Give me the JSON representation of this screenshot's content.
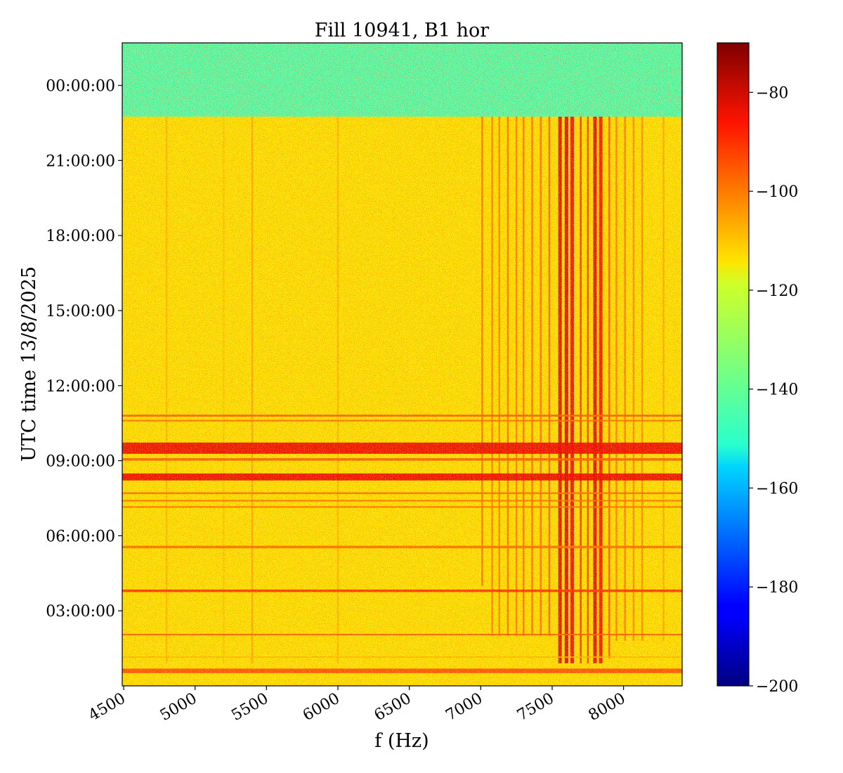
{
  "chart_data": {
    "type": "heatmap",
    "title": "Fill 10941, B1 hor",
    "xlabel": "f (Hz)",
    "ylabel": "UTC time 13/8/2025",
    "xlim": [
      4490,
      8410
    ],
    "x_ticks": [
      4500,
      5000,
      5500,
      6000,
      6500,
      7000,
      7500,
      8000
    ],
    "x_tick_labels": [
      "4500",
      "5000",
      "5500",
      "6000",
      "6500",
      "7000",
      "7500",
      "8000"
    ],
    "ylim_hours": [
      0.0,
      25.7
    ],
    "y_ticks_hours": [
      3,
      6,
      9,
      12,
      15,
      18,
      21,
      24
    ],
    "y_tick_labels": [
      "03:00:00",
      "06:00:00",
      "09:00:00",
      "12:00:00",
      "15:00:00",
      "18:00:00",
      "21:00:00",
      "00:00:00"
    ],
    "colorbar": {
      "colormap": "jet",
      "range": [
        -200,
        -70
      ],
      "ticks": [
        -200,
        -180,
        -160,
        -140,
        -120,
        -100,
        -80
      ],
      "tick_labels": [
        "−200",
        "−180",
        "−160",
        "−140",
        "−120",
        "−100",
        "−80"
      ]
    },
    "regions": {
      "noise_floor_before_fill": {
        "time_hours": [
          22.75,
          25.7
        ],
        "level": -140
      },
      "beam_present": {
        "time_hours": [
          0.0,
          22.75
        ],
        "level": -115
      }
    },
    "horizontal_bands_hours": [
      {
        "center": 9.5,
        "width": 0.45,
        "level": -84
      },
      {
        "center": 8.35,
        "width": 0.28,
        "level": -84
      },
      {
        "center": 10.8,
        "width": 0.08,
        "level": -98
      },
      {
        "center": 10.6,
        "width": 0.06,
        "level": -100
      },
      {
        "center": 9.05,
        "width": 0.1,
        "level": -98
      },
      {
        "center": 7.7,
        "width": 0.07,
        "level": -100
      },
      {
        "center": 7.4,
        "width": 0.06,
        "level": -100
      },
      {
        "center": 7.15,
        "width": 0.06,
        "level": -100
      },
      {
        "center": 5.55,
        "width": 0.1,
        "level": -100
      },
      {
        "center": 3.8,
        "width": 0.1,
        "level": -92
      },
      {
        "center": 2.05,
        "width": 0.06,
        "level": -98
      },
      {
        "center": 1.15,
        "width": 0.05,
        "level": -110
      },
      {
        "center": 0.6,
        "width": 0.18,
        "level": -96
      }
    ],
    "vertical_lines_hz": [
      {
        "freq": 7555,
        "time_hours": [
          0.9,
          22.75
        ],
        "level": -82
      },
      {
        "freq": 7600,
        "time_hours": [
          0.9,
          22.75
        ],
        "level": -80
      },
      {
        "freq": 7640,
        "time_hours": [
          0.9,
          22.75
        ],
        "level": -84
      },
      {
        "freq": 7700,
        "time_hours": [
          0.9,
          22.75
        ],
        "level": -90
      },
      {
        "freq": 7750,
        "time_hours": [
          0.9,
          22.75
        ],
        "level": -92
      },
      {
        "freq": 7800,
        "time_hours": [
          0.9,
          22.75
        ],
        "level": -82
      },
      {
        "freq": 7840,
        "time_hours": [
          0.9,
          22.75
        ],
        "level": -86
      },
      {
        "freq": 7900,
        "time_hours": [
          1.1,
          22.75
        ],
        "level": -96
      },
      {
        "freq": 7480,
        "time_hours": [
          2.0,
          22.75
        ],
        "level": -98
      },
      {
        "freq": 7420,
        "time_hours": [
          2.0,
          22.75
        ],
        "level": -100
      },
      {
        "freq": 7360,
        "time_hours": [
          2.0,
          22.75
        ],
        "level": -100
      },
      {
        "freq": 7300,
        "time_hours": [
          2.0,
          22.75
        ],
        "level": -100
      },
      {
        "freq": 7250,
        "time_hours": [
          2.0,
          22.75
        ],
        "level": -102
      },
      {
        "freq": 7190,
        "time_hours": [
          2.0,
          22.75
        ],
        "level": -100
      },
      {
        "freq": 7130,
        "time_hours": [
          2.0,
          22.75
        ],
        "level": -102
      },
      {
        "freq": 7080,
        "time_hours": [
          2.0,
          22.75
        ],
        "level": -102
      },
      {
        "freq": 7010,
        "time_hours": [
          4.0,
          22.75
        ],
        "level": -100
      },
      {
        "freq": 7950,
        "time_hours": [
          1.8,
          22.75
        ],
        "level": -102
      },
      {
        "freq": 8010,
        "time_hours": [
          1.8,
          22.75
        ],
        "level": -102
      },
      {
        "freq": 8070,
        "time_hours": [
          1.8,
          22.75
        ],
        "level": -104
      },
      {
        "freq": 8130,
        "time_hours": [
          1.8,
          22.75
        ],
        "level": -104
      },
      {
        "freq": 8280,
        "time_hours": [
          1.8,
          22.75
        ],
        "level": -108
      },
      {
        "freq": 5400,
        "time_hours": [
          0.9,
          22.75
        ],
        "level": -108
      },
      {
        "freq": 4800,
        "time_hours": [
          0.9,
          22.75
        ],
        "level": -110
      },
      {
        "freq": 6000,
        "time_hours": [
          0.9,
          22.75
        ],
        "level": -110
      },
      {
        "freq": 5200,
        "time_hours": [
          0.9,
          22.75
        ],
        "level": -112
      }
    ]
  }
}
